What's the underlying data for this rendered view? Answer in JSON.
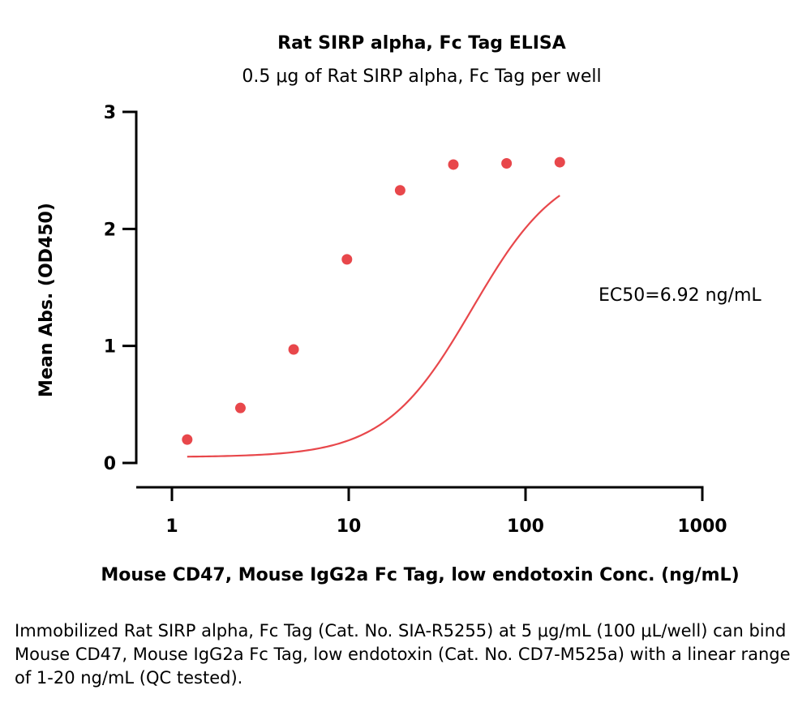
{
  "chart_data": {
    "type": "scatter",
    "title": "Rat SIRP alpha, Fc Tag ELISA",
    "subtitle": "0.5 μg of Rat SIRP alpha, Fc Tag per well",
    "xlabel": "Mouse CD47, Mouse IgG2a Fc Tag, low endotoxin Conc. (ng/mL)",
    "ylabel": "Mean Abs. (OD450)",
    "x_scale": "log",
    "xlim": [
      1,
      1000
    ],
    "ylim": [
      0,
      3
    ],
    "x_ticks": [
      "1",
      "10",
      "100",
      "1000"
    ],
    "y_ticks": [
      "0",
      "1",
      "2",
      "3"
    ],
    "grid": false,
    "annotation": "EC50=6.92 ng/mL",
    "color": "#e8474b",
    "series": [
      {
        "x": [
          1.22,
          2.44,
          4.88,
          9.77,
          19.53,
          39.06,
          78.13,
          156.25
        ],
        "y": [
          0.2,
          0.47,
          0.97,
          1.74,
          2.33,
          2.55,
          2.56,
          2.57
        ]
      }
    ]
  },
  "caption": "Immobilized Rat SIRP alpha, Fc Tag (Cat. No. SIA-R5255) at 5 μg/mL (100 μL/well) can bind Mouse CD47, Mouse IgG2a Fc Tag, low endotoxin (Cat. No. CD7-M525a) with a linear range of 1-20 ng/mL (QC tested)."
}
